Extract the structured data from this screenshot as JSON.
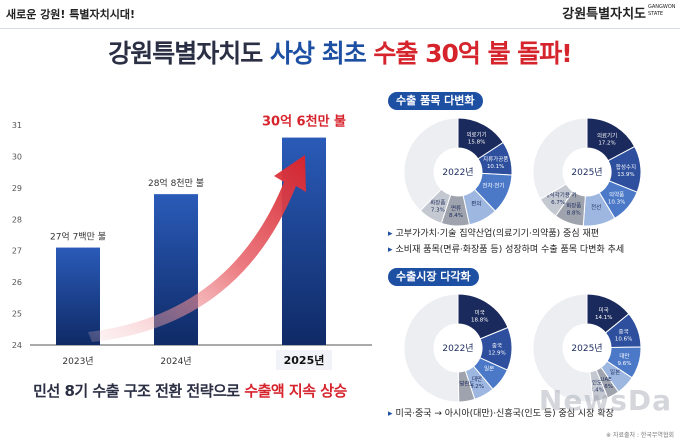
{
  "header": {
    "slogan": "새로운 강원! 특별자치시대!",
    "brand": "강원특별자치도",
    "brand_sub_1": "GANGWON",
    "brand_sub_2": "STATE"
  },
  "title": {
    "part1": "강원특별자치도 ",
    "part2": "사상 최초",
    "part3": " 수출 30억 불 돌파!"
  },
  "bottom_text": {
    "part1": "민선 8기 수출 구조 전환 전략으로 ",
    "part2": "수출액 지속 상승"
  },
  "colors": {
    "navy": "#1d4fa3",
    "red": "#d6242d",
    "dark_navy": "#1b2a5c",
    "mid_blue": "#3d67b8",
    "light_blue": "#9db7e0",
    "gray": "#9ea3ad"
  },
  "chart_data": [
    {
      "type": "bar",
      "categories": [
        "2023년",
        "2024년",
        "2025년"
      ],
      "values": [
        27.1,
        28.8,
        30.6
      ],
      "data_labels": [
        "27억 7백만 불",
        "28억 8천만 불",
        "30억 6천만 불"
      ],
      "ylim": [
        24,
        31
      ],
      "yticks": [
        24,
        25,
        26,
        27,
        28,
        29,
        30,
        31
      ],
      "grid": false
    },
    {
      "type": "pie",
      "center_label": "2022년",
      "labels": [
        "의료기기",
        "지류가공품",
        "전자·전기",
        "편의",
        "면류",
        "화장품"
      ],
      "value_labels": [
        "15.8%",
        "10.1%",
        "",
        "",
        "8.4%",
        "7.3%"
      ],
      "values": [
        15.8,
        10.1,
        12.0,
        8.7,
        8.4,
        7.3
      ],
      "other": 37.7
    },
    {
      "type": "pie",
      "center_label": "2025년",
      "labels": [
        "의료기기",
        "합성수지",
        "의약품",
        "전선",
        "화장품",
        "비내식각기용 기"
      ],
      "value_labels": [
        "17.2%",
        "13.9%",
        "10.3%",
        "",
        "8.8%",
        "6.7%"
      ],
      "values": [
        17.2,
        13.9,
        10.3,
        9.7,
        8.8,
        6.7
      ],
      "other": 33.4
    },
    {
      "type": "pie",
      "center_label": "2022년",
      "labels": [
        "미국",
        "중국",
        "일본",
        "대만",
        "네덜란드"
      ],
      "value_labels": [
        "18.8%",
        "12.9%",
        "",
        "6.2%",
        ""
      ],
      "values": [
        18.8,
        12.9,
        7.1,
        6.2,
        4.8
      ],
      "other": 50.2
    },
    {
      "type": "pie",
      "center_label": "2025년",
      "labels": [
        "미국",
        "중국",
        "대만",
        "일본",
        "UAE",
        "인도"
      ],
      "value_labels": [
        "14.1%",
        "10.6%",
        "9.6%",
        "",
        "3.6%",
        "4.4%"
      ],
      "values": [
        14.1,
        10.6,
        9.6,
        5.8,
        3.6,
        4.4
      ],
      "other": 51.9
    }
  ],
  "sections": {
    "product_title": "수출 품목 다변화",
    "market_title": "수출시장 다각화"
  },
  "bullets": {
    "b1": "고부가가치·기술 집약산업(의료기기·의약품) 중심 재편",
    "b2": "소비재 품목(면류·화장품 등) 성장하며 수출 품목 다변화 추세",
    "b3": "미국·중국 → 아시아(대만)·신흥국(인도 등) 중심 시장 확장"
  },
  "source": "※ 자료출처 : 한국무역협회",
  "watermark": "NewsDa"
}
